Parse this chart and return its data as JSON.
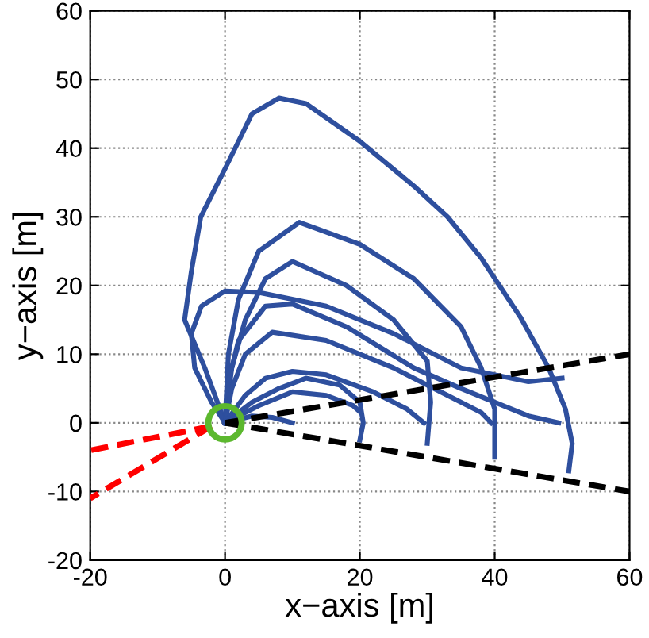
{
  "chart_data": {
    "type": "line",
    "xlabel": "x−axis [m]",
    "ylabel": "y−axis [m]",
    "xlim": [
      -20,
      60
    ],
    "ylim": [
      -20,
      60
    ],
    "xticks": [
      -20,
      0,
      20,
      40,
      60
    ],
    "yticks": [
      -20,
      -10,
      0,
      10,
      20,
      30,
      40,
      50,
      60
    ],
    "grid": true,
    "legend": false,
    "series": [
      {
        "color": "#2e4f9e",
        "x": [
          0,
          -3,
          -6,
          -5,
          -3.6,
          0,
          1.5,
          4,
          8,
          12,
          20,
          28,
          33,
          38,
          43.8,
          48,
          50.5,
          51.5,
          51
        ],
        "values": [
          0,
          8,
          15,
          22,
          30,
          37,
          40,
          45,
          47.3,
          46.5,
          41,
          34.5,
          30,
          24,
          15.4,
          8,
          2,
          -3,
          -7
        ]
      },
      {
        "color": "#2e4f9e",
        "x": [
          0,
          0.5,
          2,
          5,
          11,
          20,
          28,
          35,
          38,
          40,
          40
        ],
        "values": [
          0,
          10,
          18,
          25,
          29.2,
          26,
          21,
          14,
          8,
          2,
          -5
        ]
      },
      {
        "color": "#2e4f9e",
        "x": [
          0,
          1,
          3,
          6,
          10,
          18,
          25,
          30,
          30.5,
          30
        ],
        "values": [
          0,
          8,
          15,
          21,
          23.5,
          20,
          15,
          9,
          3,
          -3
        ]
      },
      {
        "color": "#2e4f9e",
        "x": [
          0,
          -2,
          -4.5,
          -5,
          -3.5,
          0,
          5,
          15,
          25,
          35,
          45,
          50
        ],
        "values": [
          0,
          3,
          8,
          13,
          17,
          19.2,
          19,
          17,
          13,
          8,
          6,
          6.5
        ]
      },
      {
        "color": "#2e4f9e",
        "x": [
          0,
          0.5,
          2,
          6,
          10,
          18,
          28,
          35,
          40,
          45,
          49.5
        ],
        "values": [
          0,
          6,
          12,
          17,
          17.3,
          14,
          8,
          5,
          3,
          1,
          0
        ]
      },
      {
        "color": "#2e4f9e",
        "x": [
          0,
          1,
          3,
          7,
          15,
          25,
          33,
          38,
          39.5
        ],
        "values": [
          0,
          5,
          10,
          13.2,
          12,
          8,
          4,
          1.5,
          0
        ]
      },
      {
        "color": "#2e4f9e",
        "x": [
          0,
          3,
          6,
          10,
          15,
          22,
          27,
          29.5
        ],
        "values": [
          0,
          4,
          6.5,
          7.5,
          7,
          4.5,
          2,
          0
        ]
      },
      {
        "color": "#2e4f9e",
        "x": [
          0,
          4,
          8,
          12,
          17,
          20,
          20.5,
          20
        ],
        "values": [
          0,
          3,
          5,
          6.5,
          5.5,
          3,
          0,
          -2.5
        ]
      },
      {
        "color": "#2e4f9e",
        "x": [
          0,
          5,
          10,
          15,
          19,
          20
        ],
        "values": [
          0,
          2.5,
          4.5,
          4,
          2.5,
          1.6
        ]
      },
      {
        "color": "#2e4f9e",
        "x": [
          0,
          4,
          7,
          10
        ],
        "values": [
          0,
          1,
          0.8,
          0
        ]
      },
      {
        "color": "#000000",
        "line_style": "dashed",
        "x": [
          0,
          60
        ],
        "values": [
          0,
          10
        ]
      },
      {
        "color": "#000000",
        "line_style": "dashed",
        "x": [
          0,
          60
        ],
        "values": [
          0,
          -10
        ]
      },
      {
        "color": "#ff0000",
        "line_style": "dashed",
        "x": [
          -2,
          -20
        ],
        "values": [
          -0.5,
          -4
        ]
      },
      {
        "color": "#ff0000",
        "line_style": "dashed",
        "x": [
          -2,
          -20
        ],
        "values": [
          -0.5,
          -11
        ]
      },
      {
        "type": "scatter",
        "color": "#5cb82e",
        "marker": "circle",
        "x": [
          0
        ],
        "values": [
          0
        ]
      }
    ]
  }
}
